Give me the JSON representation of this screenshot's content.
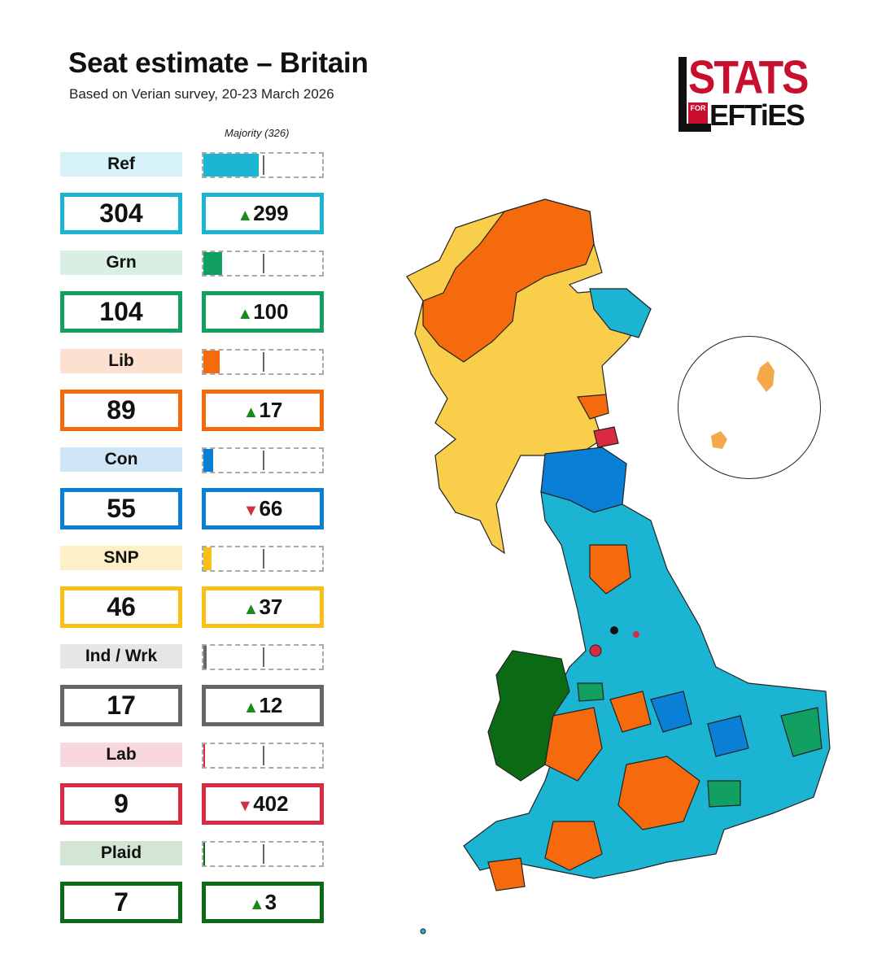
{
  "title": "Seat estimate – Britain",
  "subtitle": "Based on Verian survey, 20-23 March 2026",
  "logo": {
    "top_text": "STATS",
    "small_text": "FOR",
    "bottom_text": "EFTiES"
  },
  "majority_label": "Majority (326)",
  "majority_seats": 326,
  "max_seats": 650,
  "parties": [
    {
      "name": "Ref",
      "seats": "304",
      "seats_value": 304,
      "change": "299",
      "direction": "up",
      "color": "#1bb4d2",
      "label_bg": "#d6f1f7"
    },
    {
      "name": "Grn",
      "seats": "104",
      "seats_value": 104,
      "change": "100",
      "direction": "up",
      "color": "#12a062",
      "label_bg": "#d9efe3"
    },
    {
      "name": "Lib",
      "seats": "89",
      "seats_value": 89,
      "change": "17",
      "direction": "up",
      "color": "#f46a0c",
      "label_bg": "#fde0cf"
    },
    {
      "name": "Con",
      "seats": "55",
      "seats_value": 55,
      "change": "66",
      "direction": "down",
      "color": "#0a7fd6",
      "label_bg": "#cfe6f7"
    },
    {
      "name": "SNP",
      "seats": "46",
      "seats_value": 46,
      "change": "37",
      "direction": "up",
      "color": "#f9bf14",
      "label_bg": "#fdefc6"
    },
    {
      "name": "Ind / Wrk",
      "seats": "17",
      "seats_value": 17,
      "change": "12",
      "direction": "up",
      "color": "#666666",
      "label_bg": "#e6e6e6"
    },
    {
      "name": "Lab",
      "seats": "9",
      "seats_value": 9,
      "change": "402",
      "direction": "down",
      "color": "#d92a40",
      "label_bg": "#f8d7dd"
    },
    {
      "name": "Plaid",
      "seats": "7",
      "seats_value": 7,
      "change": "3",
      "direction": "up",
      "color": "#0b6b14",
      "label_bg": "#d3e5d3"
    }
  ],
  "map_colors": {
    "reform": "#1bb4d2",
    "green": "#12a062",
    "libdem": "#f46a0c",
    "conservative": "#0a7fd6",
    "snp": "#f9ce4a",
    "independent": "#111111",
    "labour": "#d92a40",
    "plaid": "#0b6b14",
    "shetland": "#f5a84a"
  }
}
